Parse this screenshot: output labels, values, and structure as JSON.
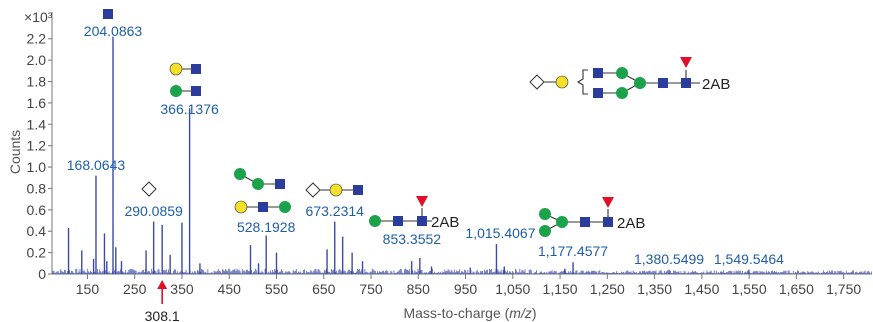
{
  "chart_data": {
    "type": "bar",
    "xlabel_prefix": "Mass-to-charge (",
    "xlabel_italic": "m/z",
    "xlabel_suffix": ")",
    "ylabel": "Counts",
    "y_multiplier": "×10³",
    "xlim": [
      75,
      1810
    ],
    "ylim": [
      0,
      2.45
    ],
    "x_ticks": [
      150,
      250,
      350,
      450,
      550,
      650,
      750,
      850,
      950,
      1050,
      1150,
      1250,
      1350,
      1450,
      1550,
      1650,
      1750
    ],
    "x_tick_labels": [
      "150",
      "250",
      "350",
      "450",
      "550",
      "650",
      "750",
      "850",
      "950",
      "1,050",
      "1,150",
      "1,250",
      "1,350",
      "1,450",
      "1,550",
      "1,650",
      "1,750"
    ],
    "y_ticks": [
      0,
      0.2,
      0.4,
      0.6,
      0.8,
      1.0,
      1.2,
      1.4,
      1.6,
      1.8,
      2.0,
      2.2
    ],
    "y_tick_labels": [
      "0",
      "0.2",
      "0.4",
      "0.6",
      "0.8",
      "1.0",
      "1.2",
      "1.4",
      "1.6",
      "1.8",
      "2.0",
      "2.2"
    ],
    "peaks": [
      {
        "mz": 110,
        "counts": 0.43
      },
      {
        "mz": 138,
        "counts": 0.22
      },
      {
        "mz": 163,
        "counts": 0.14
      },
      {
        "mz": 168.0643,
        "counts": 0.92,
        "label": "168.0643"
      },
      {
        "mz": 186,
        "counts": 0.38
      },
      {
        "mz": 191,
        "counts": 0.12
      },
      {
        "mz": 204.0863,
        "counts": 2.22,
        "label": "204.0863"
      },
      {
        "mz": 210,
        "counts": 0.25
      },
      {
        "mz": 222,
        "counts": 0.12
      },
      {
        "mz": 274,
        "counts": 0.22
      },
      {
        "mz": 290.0859,
        "counts": 0.49,
        "label": "290.0859"
      },
      {
        "mz": 308.1,
        "counts": 0.46
      },
      {
        "mz": 325,
        "counts": 0.18
      },
      {
        "mz": 350,
        "counts": 0.48
      },
      {
        "mz": 366.1376,
        "counts": 1.55,
        "label": "366.1376"
      },
      {
        "mz": 388,
        "counts": 0.1
      },
      {
        "mz": 495,
        "counts": 0.27
      },
      {
        "mz": 512,
        "counts": 0.1
      },
      {
        "mz": 528.1928,
        "counts": 0.36,
        "label": "528.1928"
      },
      {
        "mz": 550,
        "counts": 0.2
      },
      {
        "mz": 657,
        "counts": 0.23
      },
      {
        "mz": 673.2314,
        "counts": 0.49,
        "label": "673.2314"
      },
      {
        "mz": 690,
        "counts": 0.35
      },
      {
        "mz": 710,
        "counts": 0.2
      },
      {
        "mz": 732,
        "counts": 0.12
      },
      {
        "mz": 836,
        "counts": 0.12
      },
      {
        "mz": 853.3552,
        "counts": 0.15,
        "label": "853.3552"
      },
      {
        "mz": 878,
        "counts": 0.07
      },
      {
        "mz": 960,
        "counts": 0.06
      },
      {
        "mz": 1015.4067,
        "counts": 0.28,
        "label": "1,015.4067"
      },
      {
        "mz": 1032,
        "counts": 0.07
      },
      {
        "mz": 1160,
        "counts": 0.05
      },
      {
        "mz": 1177.4577,
        "counts": 0.11,
        "label": "1,177.4577"
      },
      {
        "mz": 1380.5499,
        "counts": 0.04,
        "label": "1,380.5499"
      },
      {
        "mz": 1549.5464,
        "counts": 0.04,
        "label": "1,549.5464"
      }
    ],
    "marker": {
      "mz": 308.1,
      "label": "308.1",
      "color": "#e0102a"
    },
    "colors": {
      "spectrum": "#3b4aa8",
      "label": "#1f5fa5",
      "GlcNAc": "#2a3d9c",
      "Man": "#1aa34a",
      "Gal": "#f2e02a",
      "Fuc": "#e0102a"
    },
    "tags": {
      "reducing_end": "2AB"
    }
  }
}
